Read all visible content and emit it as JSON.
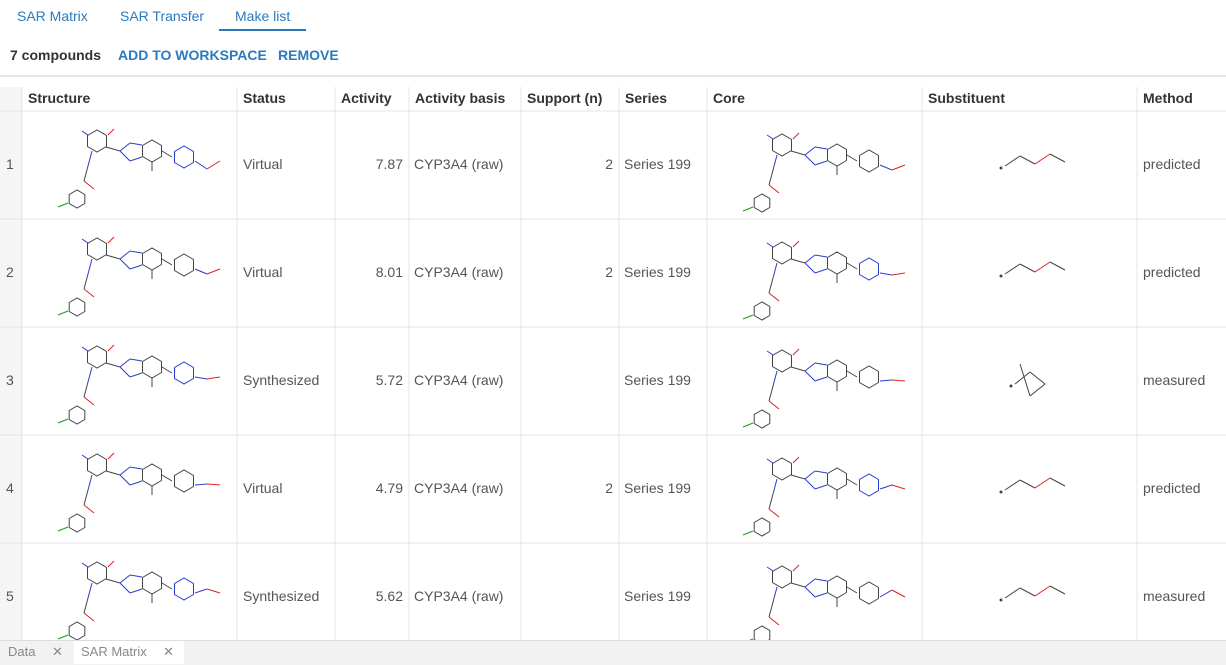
{
  "tabs": [
    "SAR Matrix",
    "SAR Transfer",
    "Make list"
  ],
  "toolbar": {
    "count": "7 compounds",
    "add": "ADD TO WORKSPACE",
    "remove": "REMOVE"
  },
  "table": {
    "columns": [
      "Structure",
      "Status",
      "Activity",
      "Activity basis",
      "Support (n)",
      "Series",
      "Core",
      "Substituent",
      "Method"
    ],
    "rows": [
      {
        "index": 1,
        "status": "Virtual",
        "activity": 7.87,
        "basis": "CYP3A4 (raw)",
        "support": 2,
        "series": "Series 199",
        "method": "predicted"
      },
      {
        "index": 2,
        "status": "Virtual",
        "activity": 8.01,
        "basis": "CYP3A4 (raw)",
        "support": 2,
        "series": "Series 199",
        "method": "predicted"
      },
      {
        "index": 3,
        "status": "Synthesized",
        "activity": 5.72,
        "basis": "CYP3A4 (raw)",
        "support": null,
        "series": "Series 199",
        "method": "measured"
      },
      {
        "index": 4,
        "status": "Virtual",
        "activity": 4.79,
        "basis": "CYP3A4 (raw)",
        "support": 2,
        "series": "Series 199",
        "method": "predicted"
      },
      {
        "index": 5,
        "status": "Synthesized",
        "activity": 5.62,
        "basis": "CYP3A4 (raw)",
        "support": null,
        "series": "Series 199",
        "method": "measured"
      }
    ]
  },
  "bottom_tabs": [
    "Data",
    "SAR Matrix"
  ]
}
